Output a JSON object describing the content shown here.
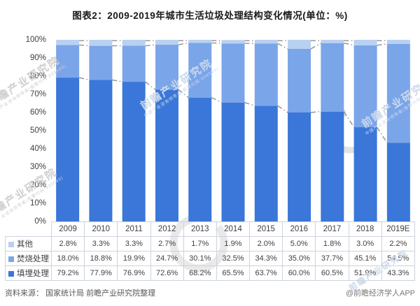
{
  "title": "图表2：2009-2019年城市生活垃圾处理结构变化情况(单位：%)",
  "source": {
    "left": "资料来源： 国家统计局 前瞻产业研究院整理",
    "right": "@前瞻经济学人APP"
  },
  "watermark": {
    "text": "前瞻产业研究院",
    "subtext": "中国产业咨询领导者(股票代码:839599)"
  },
  "chart_data": {
    "type": "bar",
    "subtype": "100%-stacked-column-with-series-lines-and-data-table",
    "title": "图表2：2009-2019年城市生活垃圾处理结构变化情况(单位：%)",
    "categories": [
      "2009",
      "2010",
      "2011",
      "2012",
      "2013",
      "2014",
      "2015",
      "2016",
      "2017",
      "2018",
      "2019E"
    ],
    "series": [
      {
        "name": "其他",
        "color": "#b9d1f0",
        "values": [
          "2.8%",
          "3.3%",
          "3.3%",
          "2.7%",
          "1.7%",
          "1.9%",
          "2.0%",
          "5.0%",
          "1.8%",
          "3.0%",
          "2.2%"
        ]
      },
      {
        "name": "焚烧处理",
        "color": "#7aa5e9",
        "values": [
          "18.0%",
          "18.8%",
          "19.9%",
          "24.7%",
          "30.1%",
          "32.5%",
          "34.3%",
          "35.0%",
          "37.7%",
          "45.1%",
          "54.5%"
        ]
      },
      {
        "name": "填埋处理",
        "color": "#3a77d9",
        "values": [
          "79.2%",
          "77.9%",
          "76.9%",
          "72.6%",
          "68.2%",
          "65.5%",
          "63.7%",
          "60.0%",
          "60.5%",
          "51.9%",
          "43.3%"
        ]
      }
    ],
    "stacking_order_bottom_to_top": [
      "填埋处理",
      "焚烧处理",
      "其他"
    ],
    "yticks": [
      "0%",
      "10%",
      "20%",
      "30%",
      "40%",
      "50%",
      "60%",
      "70%",
      "80%",
      "90%",
      "100%"
    ],
    "ylim": [
      0,
      100
    ],
    "xlabel": "",
    "ylabel": "",
    "grid": false,
    "legend_position": "table-left-column",
    "series_line_color": "#909090",
    "series_line_style": "dash-dot"
  }
}
